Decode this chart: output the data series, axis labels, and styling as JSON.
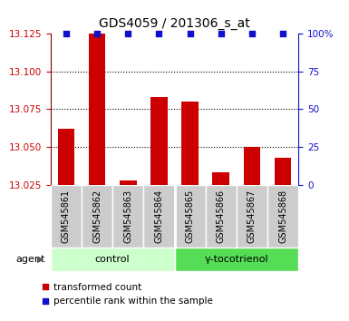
{
  "title": "GDS4059 / 201306_s_at",
  "samples": [
    "GSM545861",
    "GSM545862",
    "GSM545863",
    "GSM545864",
    "GSM545865",
    "GSM545866",
    "GSM545867",
    "GSM545868"
  ],
  "transformed_counts": [
    13.062,
    13.125,
    13.028,
    13.083,
    13.08,
    13.033,
    13.05,
    13.043
  ],
  "ylim_left": [
    13.025,
    13.125
  ],
  "ylim_right": [
    0,
    100
  ],
  "yticks_left": [
    13.025,
    13.05,
    13.075,
    13.1,
    13.125
  ],
  "yticks_right": [
    0,
    25,
    50,
    75,
    100
  ],
  "bar_color": "#cc0000",
  "dot_color": "#1111cc",
  "bar_base": 13.025,
  "control_label": "control",
  "treatment_label": "γ-tocotrienol",
  "control_bg": "#ccffcc",
  "treatment_bg": "#55dd55",
  "sample_bg": "#cccccc",
  "agent_label": "agent",
  "legend_red_label": "transformed count",
  "legend_blue_label": "percentile rank within the sample",
  "left_tick_color": "#cc0000",
  "right_tick_color": "#1111cc",
  "left_spine_color": "#880000",
  "right_spine_color": "#1111cc"
}
